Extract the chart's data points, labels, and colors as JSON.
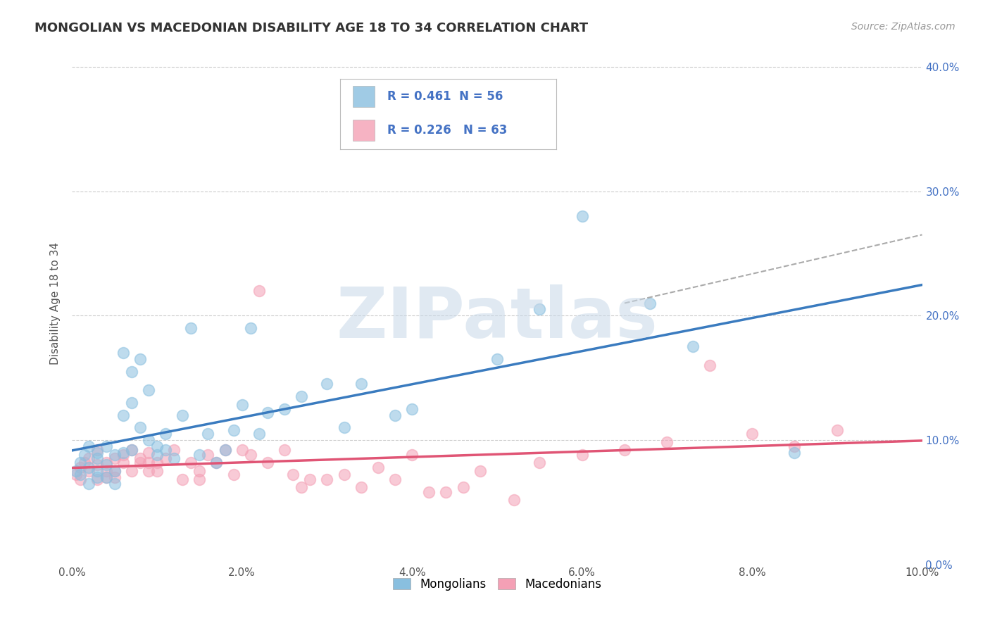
{
  "title": "MONGOLIAN VS MACEDONIAN DISABILITY AGE 18 TO 34 CORRELATION CHART",
  "source": "Source: ZipAtlas.com",
  "ylabel": "Disability Age 18 to 34",
  "xlim": [
    0.0,
    0.1
  ],
  "ylim": [
    0.0,
    0.42
  ],
  "xticks": [
    0.0,
    0.02,
    0.04,
    0.06,
    0.08,
    0.1
  ],
  "yticks": [
    0.0,
    0.1,
    0.2,
    0.3,
    0.4
  ],
  "mongolian_color": "#89bfdf",
  "macedonian_color": "#f4a0b5",
  "mongolian_line_color": "#3a7bbf",
  "macedonian_line_color": "#e05575",
  "mongolian_R": 0.461,
  "mongolian_N": 56,
  "macedonian_R": 0.226,
  "macedonian_N": 63,
  "legend_labels": [
    "Mongolians",
    "Macedonians"
  ],
  "grid_color": "#cccccc",
  "background_color": "#ffffff",
  "watermark": "ZIPatlas",
  "mongolian_x": [
    0.0005,
    0.001,
    0.001,
    0.0015,
    0.002,
    0.002,
    0.002,
    0.003,
    0.003,
    0.003,
    0.003,
    0.004,
    0.004,
    0.004,
    0.005,
    0.005,
    0.005,
    0.006,
    0.006,
    0.006,
    0.007,
    0.007,
    0.007,
    0.008,
    0.008,
    0.009,
    0.009,
    0.01,
    0.01,
    0.011,
    0.011,
    0.012,
    0.013,
    0.014,
    0.015,
    0.016,
    0.017,
    0.018,
    0.019,
    0.02,
    0.021,
    0.022,
    0.023,
    0.025,
    0.027,
    0.03,
    0.032,
    0.034,
    0.04,
    0.05,
    0.055,
    0.06,
    0.068,
    0.073,
    0.085,
    0.038
  ],
  "mongolian_y": [
    0.075,
    0.082,
    0.072,
    0.088,
    0.078,
    0.065,
    0.095,
    0.085,
    0.09,
    0.07,
    0.075,
    0.08,
    0.095,
    0.07,
    0.088,
    0.065,
    0.075,
    0.17,
    0.12,
    0.09,
    0.155,
    0.13,
    0.092,
    0.165,
    0.11,
    0.14,
    0.1,
    0.088,
    0.095,
    0.092,
    0.105,
    0.085,
    0.12,
    0.19,
    0.088,
    0.105,
    0.082,
    0.092,
    0.108,
    0.128,
    0.19,
    0.105,
    0.122,
    0.125,
    0.135,
    0.145,
    0.11,
    0.145,
    0.125,
    0.165,
    0.205,
    0.28,
    0.21,
    0.175,
    0.09,
    0.12
  ],
  "macedonian_x": [
    0.0005,
    0.001,
    0.001,
    0.0015,
    0.002,
    0.002,
    0.003,
    0.003,
    0.003,
    0.004,
    0.004,
    0.004,
    0.005,
    0.005,
    0.005,
    0.006,
    0.006,
    0.007,
    0.007,
    0.008,
    0.008,
    0.009,
    0.009,
    0.009,
    0.01,
    0.01,
    0.011,
    0.012,
    0.013,
    0.014,
    0.015,
    0.015,
    0.016,
    0.017,
    0.018,
    0.019,
    0.02,
    0.021,
    0.022,
    0.023,
    0.025,
    0.026,
    0.027,
    0.028,
    0.03,
    0.032,
    0.034,
    0.036,
    0.038,
    0.04,
    0.042,
    0.048,
    0.055,
    0.06,
    0.065,
    0.07,
    0.075,
    0.08,
    0.085,
    0.09,
    0.044,
    0.046,
    0.052
  ],
  "macedonian_y": [
    0.072,
    0.078,
    0.068,
    0.082,
    0.075,
    0.085,
    0.068,
    0.08,
    0.092,
    0.075,
    0.07,
    0.082,
    0.085,
    0.075,
    0.07,
    0.082,
    0.088,
    0.092,
    0.075,
    0.082,
    0.085,
    0.075,
    0.09,
    0.082,
    0.075,
    0.082,
    0.085,
    0.092,
    0.068,
    0.082,
    0.068,
    0.075,
    0.088,
    0.082,
    0.092,
    0.072,
    0.092,
    0.088,
    0.22,
    0.082,
    0.092,
    0.072,
    0.062,
    0.068,
    0.068,
    0.072,
    0.062,
    0.078,
    0.068,
    0.088,
    0.058,
    0.075,
    0.082,
    0.088,
    0.092,
    0.098,
    0.16,
    0.105,
    0.095,
    0.108,
    0.058,
    0.062,
    0.052
  ],
  "dash_line_x": [
    0.065,
    0.1
  ],
  "dash_line_y": [
    0.21,
    0.265
  ]
}
